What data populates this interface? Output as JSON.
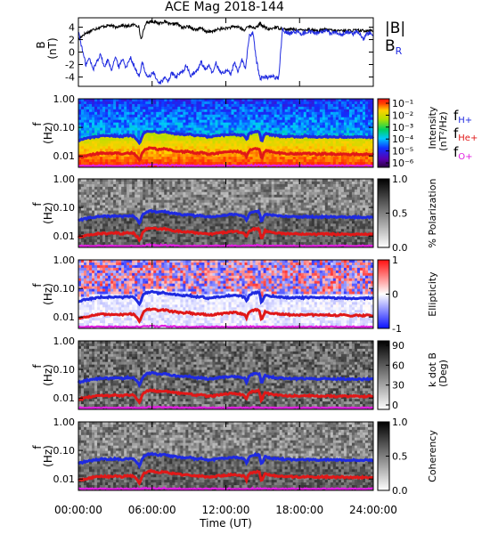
{
  "chart_data": [
    {
      "type": "line",
      "title": "ACE Mag 2018-144",
      "ylabel": "B",
      "yunit": "(nT)",
      "ylim": [
        -5.5,
        5.5
      ],
      "yticks": [
        "4",
        "2",
        "0",
        "-2",
        "-4"
      ],
      "series": [
        {
          "name": "|B|",
          "color": "#000000",
          "x": [
            0,
            0.4,
            0.8,
            1.2,
            1.6,
            2.0,
            2.5,
            3.0,
            3.5,
            4.0,
            4.5,
            4.9,
            5.1,
            5.5,
            6.0,
            6.5,
            7.0,
            7.5,
            8.0,
            8.5,
            9.0,
            9.5,
            10.0,
            10.5,
            11.0,
            11.5,
            12.0,
            12.5,
            13.0,
            13.5,
            13.8,
            14.0,
            14.5,
            14.8,
            15.0,
            15.5,
            16.0,
            16.5,
            17.0,
            17.5,
            18.0,
            18.5,
            19.0,
            19.5,
            20.0,
            20.5,
            21.0,
            21.5,
            22.0,
            22.5,
            23.0,
            23.5,
            24.0
          ],
          "values": [
            2.0,
            2.8,
            3.2,
            3.6,
            3.9,
            4.1,
            4.3,
            4.0,
            4.3,
            4.1,
            4.4,
            4.2,
            2.0,
            4.7,
            5.0,
            4.6,
            4.9,
            4.4,
            4.6,
            3.9,
            4.1,
            3.6,
            3.8,
            3.2,
            3.4,
            3.7,
            3.8,
            4.0,
            4.1,
            3.4,
            4.3,
            4.0,
            3.9,
            4.6,
            4.2,
            3.6,
            4.0,
            3.8,
            3.6,
            3.7,
            3.5,
            3.6,
            3.6,
            3.4,
            3.6,
            3.5,
            3.4,
            3.5,
            3.4,
            3.5,
            3.4,
            3.5,
            3.4
          ]
        },
        {
          "name": "B_R",
          "color": "#1f2ae0",
          "x": [
            0,
            0.3,
            0.6,
            0.9,
            1.2,
            1.5,
            1.8,
            2.1,
            2.4,
            2.7,
            3.0,
            3.3,
            3.6,
            3.9,
            4.2,
            4.5,
            4.8,
            5.0,
            5.2,
            5.5,
            5.8,
            6.1,
            6.4,
            6.7,
            7.0,
            7.3,
            7.6,
            7.9,
            8.2,
            8.5,
            8.8,
            9.1,
            9.4,
            9.7,
            10.0,
            10.3,
            10.6,
            10.9,
            11.2,
            11.5,
            11.8,
            12.1,
            12.4,
            12.7,
            13.0,
            13.3,
            13.6,
            13.9,
            14.2,
            14.5,
            14.8,
            15.1,
            15.4,
            15.7,
            16.0,
            16.3,
            16.6,
            16.9,
            17.2,
            17.5,
            17.8,
            18.1,
            18.4,
            18.7,
            19.0,
            19.3,
            19.6,
            19.9,
            20.2,
            20.5,
            20.8,
            21.1,
            21.4,
            21.7,
            22.0,
            22.3,
            22.6,
            22.9,
            23.2,
            23.5,
            23.8,
            24.0
          ],
          "values": [
            3.4,
            0.5,
            -2.0,
            -1.0,
            -2.8,
            -1.5,
            -0.2,
            -2.5,
            -1.2,
            -2.8,
            -0.8,
            -2.4,
            -1.0,
            -2.6,
            -0.7,
            -2.0,
            -3.5,
            -3.8,
            -1.5,
            -3.6,
            -4.0,
            -3.2,
            -4.7,
            -4.8,
            -4.2,
            -4.6,
            -3.4,
            -4.0,
            -3.6,
            -3.0,
            -2.2,
            -3.8,
            -3.4,
            -3.0,
            -1.5,
            -2.8,
            -2.2,
            -3.4,
            -1.8,
            -3.0,
            -3.4,
            -2.8,
            -3.6,
            -1.5,
            -3.4,
            -1.2,
            -2.6,
            2.5,
            3.2,
            -1.5,
            -4.2,
            -4.0,
            -4.0,
            -3.8,
            -4.1,
            -4.2,
            3.6,
            3.3,
            3.0,
            3.2,
            3.2,
            3.0,
            3.1,
            3.2,
            3.3,
            3.0,
            3.1,
            3.2,
            3.3,
            3.0,
            3.1,
            3.2,
            2.8,
            3.1,
            3.2,
            2.9,
            3.3,
            3.0,
            2.1,
            3.0,
            3.2,
            2.9
          ]
        }
      ],
      "legend": [
        "|B|",
        "B_R"
      ],
      "legend_position": "right"
    },
    {
      "type": "heatmap",
      "ylabel": "f",
      "yunit": "(Hz)",
      "yscale": "log",
      "ylim": [
        0.004,
        1.0
      ],
      "yticks": [
        "1.00",
        "0.10",
        "0.01"
      ],
      "colorbar": {
        "label": "Intensity",
        "unit": "(nT²/Hz)",
        "scale": "log",
        "ticks": [
          "10⁻¹",
          "10⁻²",
          "10⁻³",
          "10⁻⁴",
          "10⁻⁵",
          "10⁻⁶"
        ],
        "colormap": "rainbow"
      },
      "overlay_legend": [
        "f_H+",
        "f_He+",
        "f_O+"
      ]
    },
    {
      "type": "heatmap",
      "ylabel": "f",
      "yunit": "(Hz)",
      "yscale": "log",
      "ylim": [
        0.004,
        1.0
      ],
      "yticks": [
        "1.00",
        "0.10",
        "0.01"
      ],
      "colorbar": {
        "label": "% Polarization",
        "ticks": [
          "1.0",
          "0.5",
          "0.0"
        ],
        "colormap": "grayscale"
      }
    },
    {
      "type": "heatmap",
      "ylabel": "f",
      "yunit": "(Hz)",
      "yscale": "log",
      "ylim": [
        0.004,
        1.0
      ],
      "yticks": [
        "1.00",
        "0.10",
        "0.01"
      ],
      "colorbar": {
        "label": "Ellipticity",
        "ticks": [
          "1",
          "0",
          "-1"
        ],
        "colormap": "blue-white-red"
      }
    },
    {
      "type": "heatmap",
      "ylabel": "f",
      "yunit": "(Hz)",
      "yscale": "log",
      "ylim": [
        0.004,
        1.0
      ],
      "yticks": [
        "1.00",
        "0.10",
        "0.01"
      ],
      "colorbar": {
        "label": "k dot B",
        "unit": "(Deg)",
        "ticks": [
          "90",
          "60",
          "30",
          "0"
        ],
        "colormap": "grayscale"
      }
    },
    {
      "type": "heatmap",
      "ylabel": "f",
      "yunit": "(Hz)",
      "yscale": "log",
      "ylim": [
        0.004,
        1.0
      ],
      "yticks": [
        "1.00",
        "0.10",
        "0.01"
      ],
      "colorbar": {
        "label": "Coherency",
        "ticks": [
          "1.0",
          "0.5",
          "0.0"
        ],
        "colormap": "grayscale"
      }
    }
  ],
  "x_axis": {
    "label": "Time (UT)",
    "xlim": [
      0,
      24
    ],
    "ticks": [
      "00:00:00",
      "06:00:00",
      "12:00:00",
      "18:00:00",
      "24:00:00"
    ]
  },
  "gyrofrequency_lines": {
    "x": [
      0,
      0.5,
      1.0,
      1.5,
      2.0,
      2.5,
      3.0,
      3.5,
      4.0,
      4.5,
      5.0,
      5.3,
      5.6,
      6.0,
      6.5,
      7.0,
      7.5,
      8.0,
      8.5,
      9.0,
      9.5,
      10.0,
      10.5,
      11.0,
      11.5,
      12.0,
      12.5,
      13.0,
      13.5,
      13.7,
      13.9,
      14.3,
      14.7,
      14.9,
      15.2,
      15.6,
      16.0,
      16.5,
      17.0,
      17.5,
      18.0,
      18.5,
      19.0,
      19.5,
      20.0,
      20.5,
      21.0,
      21.5,
      22.0,
      22.5,
      23.0,
      23.5,
      24.0
    ],
    "series": [
      {
        "name": "f_H+",
        "color": "#1f2ae0",
        "values": [
          0.035,
          0.04,
          0.044,
          0.047,
          0.05,
          0.049,
          0.051,
          0.048,
          0.052,
          0.05,
          0.028,
          0.06,
          0.072,
          0.075,
          0.068,
          0.072,
          0.063,
          0.06,
          0.055,
          0.058,
          0.05,
          0.052,
          0.046,
          0.048,
          0.052,
          0.054,
          0.058,
          0.055,
          0.05,
          0.035,
          0.062,
          0.07,
          0.072,
          0.03,
          0.06,
          0.055,
          0.052,
          0.05,
          0.048,
          0.048,
          0.047,
          0.048,
          0.048,
          0.046,
          0.048,
          0.047,
          0.046,
          0.047,
          0.045,
          0.046,
          0.045,
          0.046,
          0.045
        ]
      },
      {
        "name": "f_He+",
        "color": "#e01818",
        "values": [
          0.009,
          0.01,
          0.011,
          0.012,
          0.0125,
          0.012,
          0.0128,
          0.012,
          0.013,
          0.0125,
          0.007,
          0.015,
          0.018,
          0.019,
          0.017,
          0.018,
          0.016,
          0.015,
          0.014,
          0.0145,
          0.0125,
          0.013,
          0.0115,
          0.012,
          0.013,
          0.0135,
          0.0145,
          0.014,
          0.0125,
          0.009,
          0.0155,
          0.0175,
          0.018,
          0.0075,
          0.015,
          0.014,
          0.013,
          0.0125,
          0.012,
          0.012,
          0.0118,
          0.012,
          0.012,
          0.0115,
          0.012,
          0.0118,
          0.0115,
          0.0118,
          0.0113,
          0.0115,
          0.0113,
          0.0115,
          0.0113
        ]
      },
      {
        "name": "f_O+",
        "color": "#e01ee0",
        "values": [
          0.0045,
          0.0045,
          0.0045,
          0.0045,
          0.0045,
          0.0045,
          0.0045,
          0.0045,
          0.0045,
          0.0045,
          0.0045,
          0.0046,
          0.0048,
          0.0048,
          0.0047,
          0.0048,
          0.0046,
          0.0046,
          0.0045,
          0.0045,
          0.0045,
          0.0045,
          0.0045,
          0.0045,
          0.0045,
          0.0045,
          0.0045,
          0.0045,
          0.0045,
          0.0045,
          0.0046,
          0.0047,
          0.0047,
          0.0045,
          0.0046,
          0.0045,
          0.0045,
          0.0045,
          0.0045,
          0.0045,
          0.0045,
          0.0045,
          0.0045,
          0.0045,
          0.0045,
          0.0045,
          0.0045,
          0.0045,
          0.0045,
          0.0045,
          0.0045,
          0.0045,
          0.0045
        ]
      }
    ]
  }
}
